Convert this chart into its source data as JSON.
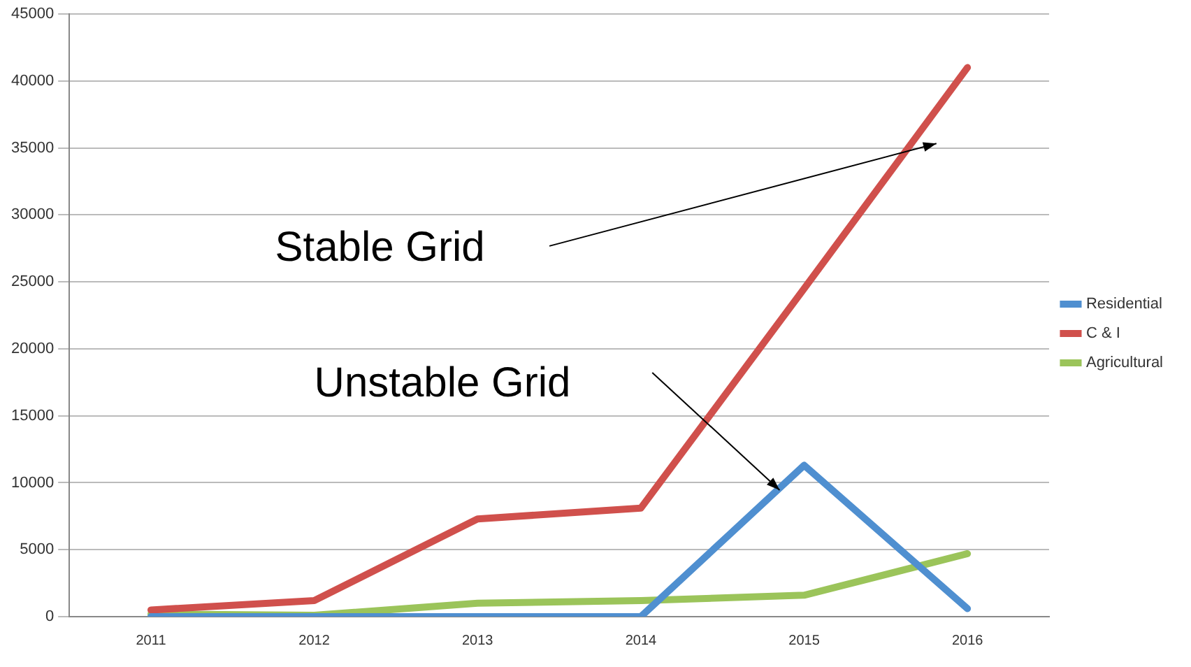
{
  "chart_data": {
    "type": "line",
    "categories": [
      "2011",
      "2012",
      "2013",
      "2014",
      "2015",
      "2016"
    ],
    "series": [
      {
        "name": "Residential",
        "color": "#4f8fd0",
        "values": [
          0,
          0,
          0,
          0,
          11300,
          600
        ]
      },
      {
        "name": "C & I",
        "color": "#d0504c",
        "values": [
          500,
          1200,
          7300,
          8100,
          24500,
          41000
        ]
      },
      {
        "name": "Agricultural",
        "color": "#9bc45a",
        "values": [
          200,
          100,
          1000,
          1200,
          1600,
          4700
        ]
      }
    ],
    "ylim": [
      0,
      45000
    ],
    "yticks": [
      0,
      5000,
      10000,
      15000,
      20000,
      25000,
      30000,
      35000,
      40000,
      45000
    ],
    "grid": "y",
    "legend": "right",
    "marker": "none",
    "line_style": "solid",
    "annotations": [
      "Stable Grid",
      "Unstable Grid"
    ]
  }
}
